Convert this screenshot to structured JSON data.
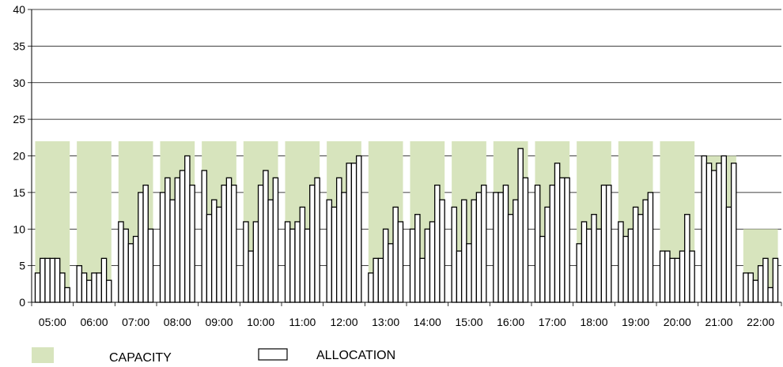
{
  "chart_data": {
    "type": "bar",
    "categories": [
      "05:00",
      "06:00",
      "07:00",
      "08:00",
      "09:00",
      "10:00",
      "11:00",
      "12:00",
      "13:00",
      "14:00",
      "15:00",
      "16:00",
      "17:00",
      "18:00",
      "19:00",
      "20:00",
      "21:00",
      "22:00"
    ],
    "ylim": [
      0,
      40
    ],
    "yticks": [
      0,
      5,
      10,
      15,
      20,
      25,
      30,
      35,
      40
    ],
    "grid": true,
    "legend_position": "bottom-left",
    "series": [
      {
        "name": "CAPACITY",
        "color": "#d7e4bd",
        "values": [
          22,
          22,
          22,
          22,
          22,
          22,
          22,
          22,
          22,
          22,
          22,
          22,
          22,
          22,
          22,
          22,
          20,
          10
        ]
      },
      {
        "name": "ALLOCATION",
        "color": "#ffffff",
        "stroke": "#000000",
        "values": [
          [
            4,
            6,
            6,
            6,
            6,
            4,
            2
          ],
          [
            5,
            4,
            3,
            4,
            4,
            6,
            3
          ],
          [
            11,
            10,
            8,
            9,
            15,
            16,
            10
          ],
          [
            15,
            17,
            14,
            17,
            18,
            20,
            16
          ],
          [
            18,
            12,
            14,
            13,
            16,
            17,
            16
          ],
          [
            11,
            7,
            11,
            16,
            18,
            14,
            17
          ],
          [
            11,
            10,
            11,
            13,
            10,
            16,
            17
          ],
          [
            14,
            13,
            17,
            15,
            19,
            19,
            20
          ],
          [
            4,
            6,
            6,
            10,
            8,
            13,
            11
          ],
          [
            10,
            12,
            6,
            10,
            11,
            16,
            14
          ],
          [
            13,
            7,
            14,
            8,
            14,
            15,
            16
          ],
          [
            15,
            15,
            16,
            12,
            14,
            21,
            17
          ],
          [
            16,
            9,
            13,
            16,
            19,
            17,
            17
          ],
          [
            8,
            11,
            10,
            12,
            10,
            16,
            16
          ],
          [
            11,
            9,
            10,
            13,
            12,
            14,
            15
          ],
          [
            7,
            7,
            6,
            6,
            7,
            12,
            7
          ],
          [
            20,
            19,
            18,
            19,
            20,
            13,
            19
          ],
          [
            4,
            4,
            3,
            5,
            6,
            2,
            6
          ]
        ]
      }
    ]
  }
}
